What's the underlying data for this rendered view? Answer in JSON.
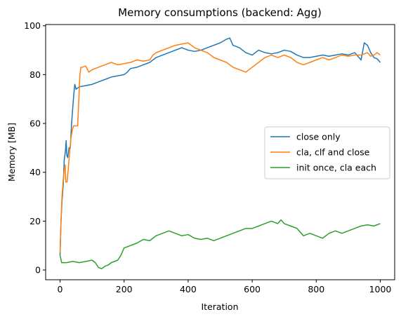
{
  "chart_data": {
    "type": "line",
    "title": "Memory consumptions (backend: Agg)",
    "xlabel": "Iteration",
    "ylabel": "Memory [MB]",
    "xlim": [
      -45,
      1045
    ],
    "ylim": [
      -4,
      100.5
    ],
    "xticks": [
      0,
      200,
      400,
      600,
      800,
      1000
    ],
    "yticks": [
      0,
      20,
      40,
      60,
      80,
      100
    ],
    "grid": false,
    "legend_position": "center-right",
    "series": [
      {
        "name": "close only",
        "color": "#1f77b4",
        "points": [
          [
            0,
            6
          ],
          [
            3,
            20
          ],
          [
            6,
            28
          ],
          [
            10,
            35
          ],
          [
            13,
            45
          ],
          [
            17,
            49
          ],
          [
            19,
            53
          ],
          [
            21,
            47
          ],
          [
            24,
            46
          ],
          [
            28,
            50
          ],
          [
            32,
            50
          ],
          [
            36,
            60
          ],
          [
            40,
            67
          ],
          [
            43,
            72
          ],
          [
            46,
            76
          ],
          [
            50,
            74
          ],
          [
            60,
            75
          ],
          [
            80,
            75.5
          ],
          [
            100,
            76
          ],
          [
            120,
            77
          ],
          [
            140,
            78
          ],
          [
            160,
            79
          ],
          [
            180,
            79.5
          ],
          [
            200,
            80
          ],
          [
            210,
            81
          ],
          [
            220,
            82.5
          ],
          [
            240,
            83
          ],
          [
            260,
            84
          ],
          [
            280,
            85
          ],
          [
            300,
            87
          ],
          [
            320,
            88
          ],
          [
            340,
            89
          ],
          [
            360,
            90
          ],
          [
            380,
            91
          ],
          [
            400,
            90
          ],
          [
            420,
            89.5
          ],
          [
            440,
            90
          ],
          [
            460,
            91
          ],
          [
            480,
            92
          ],
          [
            500,
            93
          ],
          [
            520,
            94.5
          ],
          [
            530,
            95
          ],
          [
            540,
            92
          ],
          [
            560,
            91
          ],
          [
            580,
            89
          ],
          [
            600,
            88
          ],
          [
            620,
            90
          ],
          [
            640,
            89
          ],
          [
            660,
            88.5
          ],
          [
            680,
            89
          ],
          [
            700,
            90
          ],
          [
            720,
            89.5
          ],
          [
            740,
            88
          ],
          [
            760,
            87
          ],
          [
            780,
            87
          ],
          [
            800,
            87.5
          ],
          [
            820,
            88
          ],
          [
            840,
            87.5
          ],
          [
            860,
            88
          ],
          [
            880,
            88.5
          ],
          [
            900,
            88
          ],
          [
            920,
            89
          ],
          [
            940,
            86
          ],
          [
            950,
            93
          ],
          [
            960,
            92
          ],
          [
            970,
            89
          ],
          [
            980,
            87
          ],
          [
            990,
            86.5
          ],
          [
            1000,
            85
          ]
        ]
      },
      {
        "name": "cla, clf and close",
        "color": "#ff7f0e",
        "points": [
          [
            0,
            7
          ],
          [
            3,
            20
          ],
          [
            6,
            30
          ],
          [
            10,
            37
          ],
          [
            13,
            41
          ],
          [
            16,
            43
          ],
          [
            18,
            36
          ],
          [
            22,
            36
          ],
          [
            26,
            42
          ],
          [
            30,
            48
          ],
          [
            34,
            54
          ],
          [
            38,
            57
          ],
          [
            42,
            59
          ],
          [
            48,
            59
          ],
          [
            55,
            59
          ],
          [
            62,
            80
          ],
          [
            65,
            83
          ],
          [
            70,
            83
          ],
          [
            80,
            83.5
          ],
          [
            90,
            81
          ],
          [
            100,
            82
          ],
          [
            120,
            83
          ],
          [
            140,
            84
          ],
          [
            160,
            85
          ],
          [
            180,
            84
          ],
          [
            200,
            84.5
          ],
          [
            220,
            85
          ],
          [
            240,
            86
          ],
          [
            260,
            85.5
          ],
          [
            280,
            86
          ],
          [
            290,
            88
          ],
          [
            300,
            89
          ],
          [
            320,
            90
          ],
          [
            340,
            91
          ],
          [
            360,
            92
          ],
          [
            380,
            92.5
          ],
          [
            400,
            93
          ],
          [
            420,
            91
          ],
          [
            440,
            90
          ],
          [
            460,
            89
          ],
          [
            480,
            87
          ],
          [
            500,
            86
          ],
          [
            520,
            85
          ],
          [
            540,
            83
          ],
          [
            560,
            82
          ],
          [
            580,
            81
          ],
          [
            600,
            83
          ],
          [
            620,
            85
          ],
          [
            640,
            87
          ],
          [
            660,
            88
          ],
          [
            680,
            87
          ],
          [
            700,
            88
          ],
          [
            720,
            87
          ],
          [
            740,
            85
          ],
          [
            760,
            84
          ],
          [
            780,
            85
          ],
          [
            800,
            86
          ],
          [
            820,
            87
          ],
          [
            840,
            86
          ],
          [
            860,
            87
          ],
          [
            880,
            88
          ],
          [
            900,
            87.5
          ],
          [
            920,
            88
          ],
          [
            940,
            88
          ],
          [
            960,
            89
          ],
          [
            970,
            87.5
          ],
          [
            980,
            88
          ],
          [
            990,
            89
          ],
          [
            1000,
            88
          ]
        ]
      },
      {
        "name": "init once, cla each",
        "color": "#2ca02c",
        "points": [
          [
            0,
            6
          ],
          [
            5,
            3
          ],
          [
            20,
            3
          ],
          [
            40,
            3.5
          ],
          [
            60,
            3
          ],
          [
            80,
            3.5
          ],
          [
            100,
            4
          ],
          [
            110,
            3
          ],
          [
            120,
            1
          ],
          [
            130,
            0.5
          ],
          [
            140,
            1.5
          ],
          [
            150,
            2
          ],
          [
            160,
            3
          ],
          [
            180,
            4
          ],
          [
            190,
            6
          ],
          [
            200,
            9
          ],
          [
            220,
            10
          ],
          [
            240,
            11
          ],
          [
            260,
            12.5
          ],
          [
            280,
            12
          ],
          [
            300,
            14
          ],
          [
            320,
            15
          ],
          [
            340,
            16
          ],
          [
            360,
            15
          ],
          [
            380,
            14
          ],
          [
            400,
            14.5
          ],
          [
            420,
            13
          ],
          [
            440,
            12.5
          ],
          [
            460,
            13
          ],
          [
            480,
            12
          ],
          [
            500,
            13
          ],
          [
            520,
            14
          ],
          [
            540,
            15
          ],
          [
            560,
            16
          ],
          [
            580,
            17
          ],
          [
            600,
            17
          ],
          [
            620,
            18
          ],
          [
            640,
            19
          ],
          [
            660,
            20
          ],
          [
            680,
            19
          ],
          [
            690,
            20.5
          ],
          [
            700,
            19
          ],
          [
            720,
            18
          ],
          [
            740,
            17
          ],
          [
            760,
            14
          ],
          [
            780,
            15
          ],
          [
            800,
            14
          ],
          [
            820,
            13
          ],
          [
            840,
            15
          ],
          [
            860,
            16
          ],
          [
            880,
            15
          ],
          [
            900,
            16
          ],
          [
            920,
            17
          ],
          [
            940,
            18
          ],
          [
            960,
            18.5
          ],
          [
            980,
            18
          ],
          [
            990,
            18.5
          ],
          [
            1000,
            19
          ]
        ]
      }
    ]
  }
}
